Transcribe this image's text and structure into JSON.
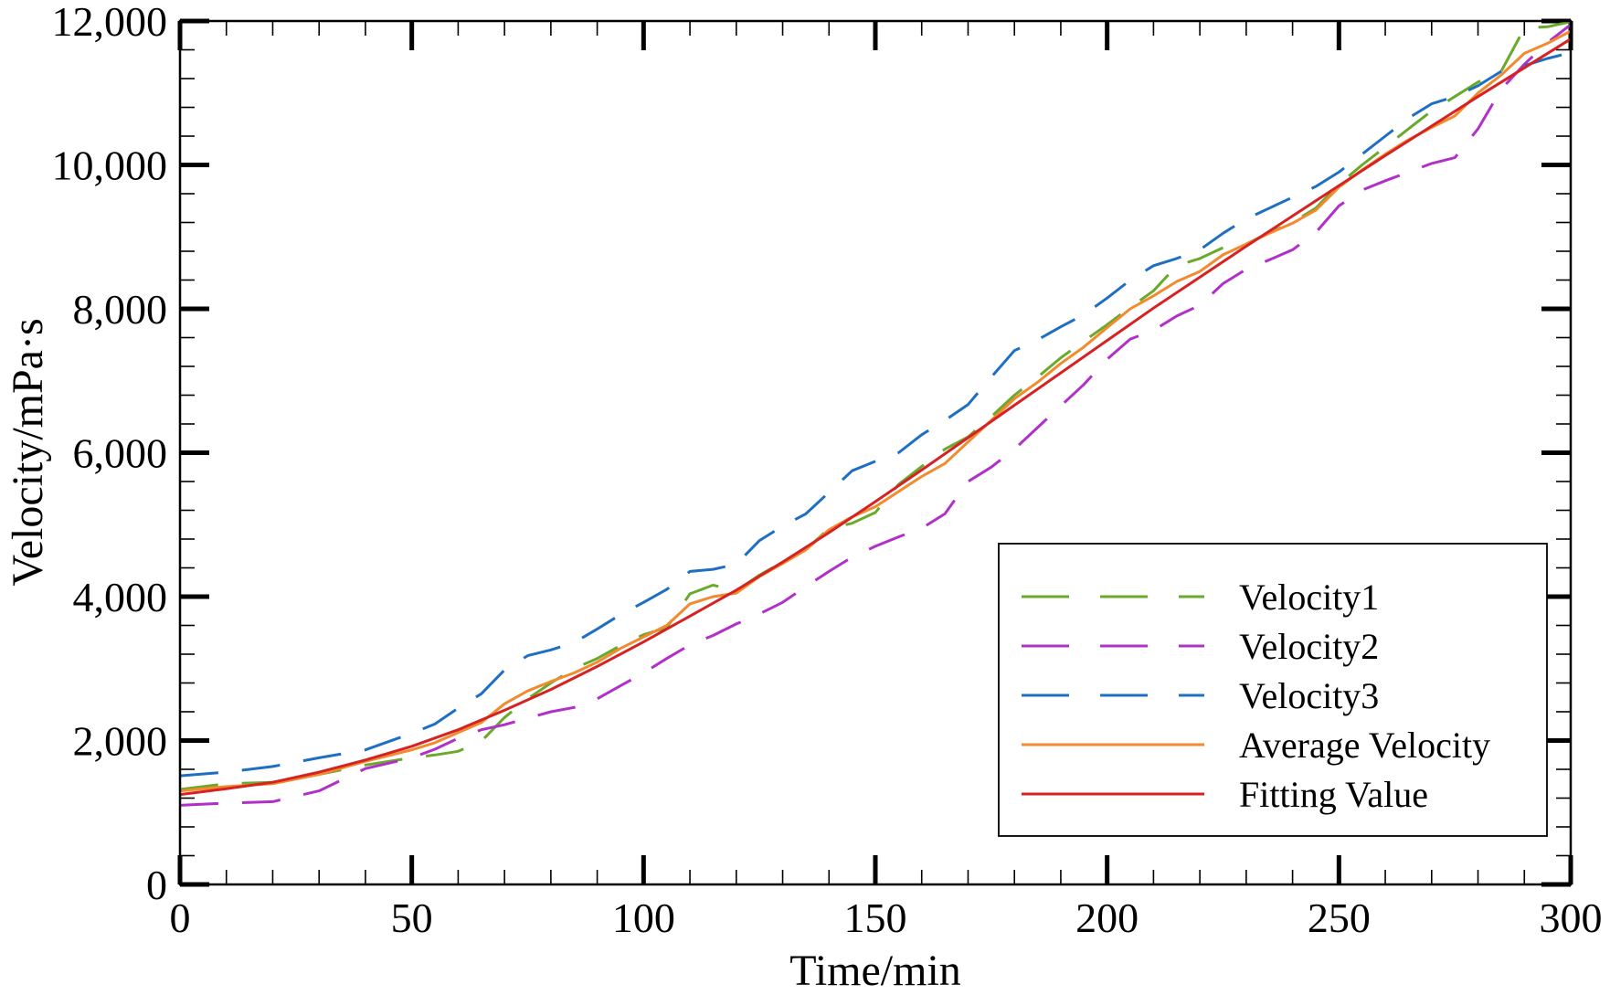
{
  "chart_data": {
    "type": "line",
    "xlabel": "Time/min",
    "ylabel": "Velocity/mPa·s",
    "xlim": [
      0,
      300
    ],
    "ylim": [
      0,
      12000
    ],
    "x_ticks": [
      0,
      50,
      100,
      150,
      200,
      250,
      300
    ],
    "x_tick_labels": [
      "0",
      "50",
      "100",
      "150",
      "200",
      "250",
      "300"
    ],
    "y_ticks": [
      0,
      2000,
      4000,
      6000,
      8000,
      10000,
      12000
    ],
    "y_tick_labels": [
      "0",
      "2,000",
      "4,000",
      "6,000",
      "8,000",
      "10,000",
      "12,000"
    ],
    "grid": false,
    "legend_position": "bottom-right",
    "series": [
      {
        "name": "Velocity1",
        "color": "#6aaa2a",
        "style": "dashed",
        "x": [
          0,
          10,
          20,
          30,
          40,
          50,
          55,
          60,
          65,
          70,
          75,
          80,
          85,
          90,
          95,
          100,
          105,
          110,
          115,
          120,
          125,
          130,
          135,
          140,
          145,
          150,
          155,
          160,
          165,
          170,
          175,
          180,
          185,
          190,
          195,
          200,
          205,
          210,
          215,
          220,
          225,
          230,
          235,
          240,
          245,
          250,
          255,
          260,
          265,
          270,
          275,
          280,
          285,
          290,
          295,
          300
        ],
        "values": [
          1320,
          1400,
          1420,
          1530,
          1660,
          1760,
          1800,
          1850,
          1990,
          2320,
          2580,
          2800,
          3000,
          3140,
          3320,
          3470,
          3570,
          4040,
          4160,
          4080,
          4300,
          4480,
          4650,
          4950,
          5020,
          5170,
          5560,
          5810,
          6050,
          6220,
          6500,
          6800,
          7050,
          7320,
          7550,
          7780,
          8020,
          8250,
          8600,
          8700,
          8850,
          8900,
          9060,
          9200,
          9400,
          9730,
          10000,
          10250,
          10500,
          10750,
          10950,
          11150,
          11300,
          11900,
          11920,
          11990
        ]
      },
      {
        "name": "Velocity2",
        "color": "#b030c8",
        "style": "dashed",
        "x": [
          0,
          10,
          20,
          30,
          40,
          50,
          55,
          60,
          65,
          70,
          75,
          80,
          85,
          90,
          95,
          100,
          105,
          110,
          115,
          120,
          125,
          130,
          135,
          140,
          145,
          150,
          155,
          160,
          165,
          170,
          175,
          180,
          185,
          190,
          195,
          200,
          205,
          210,
          215,
          220,
          225,
          230,
          235,
          240,
          245,
          250,
          255,
          260,
          265,
          270,
          275,
          280,
          285,
          290,
          295,
          300
        ],
        "values": [
          1100,
          1130,
          1150,
          1300,
          1610,
          1760,
          1880,
          2030,
          2150,
          2220,
          2310,
          2400,
          2460,
          2580,
          2760,
          2940,
          3140,
          3330,
          3460,
          3620,
          3760,
          3920,
          4140,
          4350,
          4550,
          4700,
          4830,
          4950,
          5150,
          5600,
          5800,
          6050,
          6350,
          6650,
          6950,
          7300,
          7580,
          7700,
          7900,
          8050,
          8350,
          8550,
          8680,
          8820,
          9060,
          9430,
          9650,
          9780,
          9900,
          10020,
          10100,
          10500,
          11050,
          11400,
          11700,
          11950
        ]
      },
      {
        "name": "Velocity3",
        "color": "#1e6fc4",
        "style": "dashed",
        "x": [
          0,
          10,
          20,
          30,
          40,
          50,
          55,
          60,
          65,
          70,
          75,
          80,
          85,
          90,
          95,
          100,
          105,
          110,
          115,
          120,
          125,
          130,
          135,
          140,
          145,
          150,
          155,
          160,
          165,
          170,
          175,
          180,
          185,
          190,
          195,
          200,
          205,
          210,
          215,
          220,
          225,
          230,
          235,
          240,
          245,
          250,
          255,
          260,
          265,
          270,
          275,
          280,
          285,
          290,
          295,
          300
        ],
        "values": [
          1510,
          1560,
          1640,
          1760,
          1870,
          2100,
          2230,
          2450,
          2650,
          2980,
          3180,
          3260,
          3360,
          3550,
          3750,
          3920,
          4100,
          4350,
          4380,
          4450,
          4780,
          4980,
          5150,
          5450,
          5750,
          5880,
          6000,
          6250,
          6450,
          6670,
          7050,
          7420,
          7570,
          7750,
          7920,
          8150,
          8400,
          8600,
          8700,
          8820,
          9050,
          9250,
          9400,
          9550,
          9700,
          9900,
          10150,
          10400,
          10650,
          10850,
          10950,
          11100,
          11300,
          11380,
          11480,
          11560
        ]
      },
      {
        "name": "Average Velocity",
        "color": "#f28a2e",
        "style": "solid",
        "x": [
          0,
          10,
          20,
          30,
          40,
          50,
          55,
          60,
          65,
          70,
          75,
          80,
          85,
          90,
          95,
          100,
          105,
          110,
          115,
          120,
          125,
          130,
          135,
          140,
          145,
          150,
          155,
          160,
          165,
          170,
          175,
          180,
          185,
          190,
          195,
          200,
          205,
          210,
          215,
          220,
          225,
          230,
          235,
          240,
          245,
          250,
          255,
          260,
          265,
          270,
          275,
          280,
          285,
          290,
          295,
          300
        ],
        "values": [
          1300,
          1360,
          1400,
          1530,
          1710,
          1870,
          1970,
          2110,
          2250,
          2510,
          2690,
          2820,
          2940,
          3090,
          3280,
          3440,
          3600,
          3900,
          4000,
          4050,
          4280,
          4460,
          4650,
          4930,
          5110,
          5250,
          5460,
          5670,
          5850,
          6150,
          6450,
          6750,
          6980,
          7240,
          7470,
          7740,
          8000,
          8180,
          8380,
          8520,
          8750,
          8900,
          9050,
          9190,
          9370,
          9690,
          9930,
          10150,
          10350,
          10520,
          10680,
          11000,
          11250,
          11550,
          11690,
          11860
        ]
      },
      {
        "name": "Fitting Value",
        "color": "#d62222",
        "style": "solid",
        "x": [
          0,
          10,
          20,
          30,
          40,
          50,
          60,
          70,
          80,
          90,
          100,
          110,
          120,
          130,
          140,
          150,
          160,
          170,
          180,
          190,
          200,
          210,
          220,
          230,
          240,
          250,
          260,
          270,
          280,
          290,
          300
        ],
        "values": [
          1250,
          1330,
          1420,
          1560,
          1730,
          1920,
          2150,
          2420,
          2710,
          3030,
          3370,
          3730,
          4090,
          4480,
          4890,
          5320,
          5760,
          6210,
          6660,
          7110,
          7560,
          8010,
          8440,
          8870,
          9290,
          9710,
          10130,
          10540,
          10950,
          11350,
          11750
        ]
      }
    ]
  }
}
